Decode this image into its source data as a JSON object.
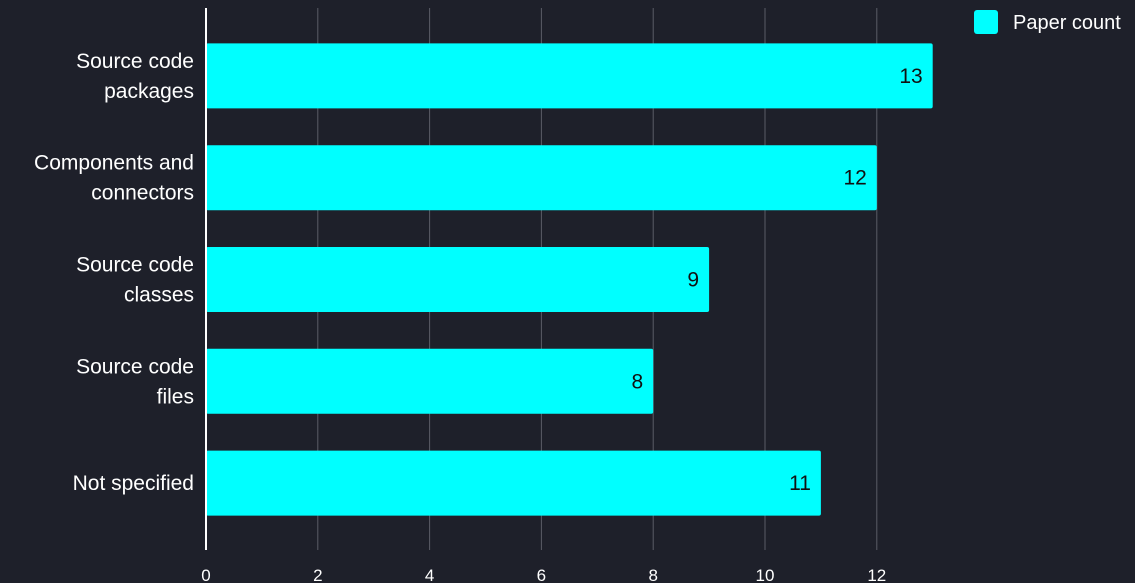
{
  "chart_data": {
    "type": "bar",
    "orientation": "horizontal",
    "categories": [
      [
        "Source code",
        "packages"
      ],
      [
        "Components and",
        "connectors"
      ],
      [
        "Source code",
        "classes"
      ],
      [
        "Source code",
        "files"
      ],
      [
        "Not specified"
      ]
    ],
    "series": [
      {
        "name": "Paper count",
        "values": [
          13,
          12,
          9,
          8,
          11
        ],
        "color": "#00ffff"
      }
    ],
    "xlim": [
      0,
      13
    ],
    "xticks": [
      0,
      2,
      4,
      6,
      8,
      10,
      12
    ],
    "grid": true,
    "legend_position": "top-right",
    "colors": {
      "background": "#1e202a",
      "grid": "#5a5d66",
      "axis": "#ffffff",
      "text": "#ffffff",
      "data_label": "#111111"
    }
  }
}
